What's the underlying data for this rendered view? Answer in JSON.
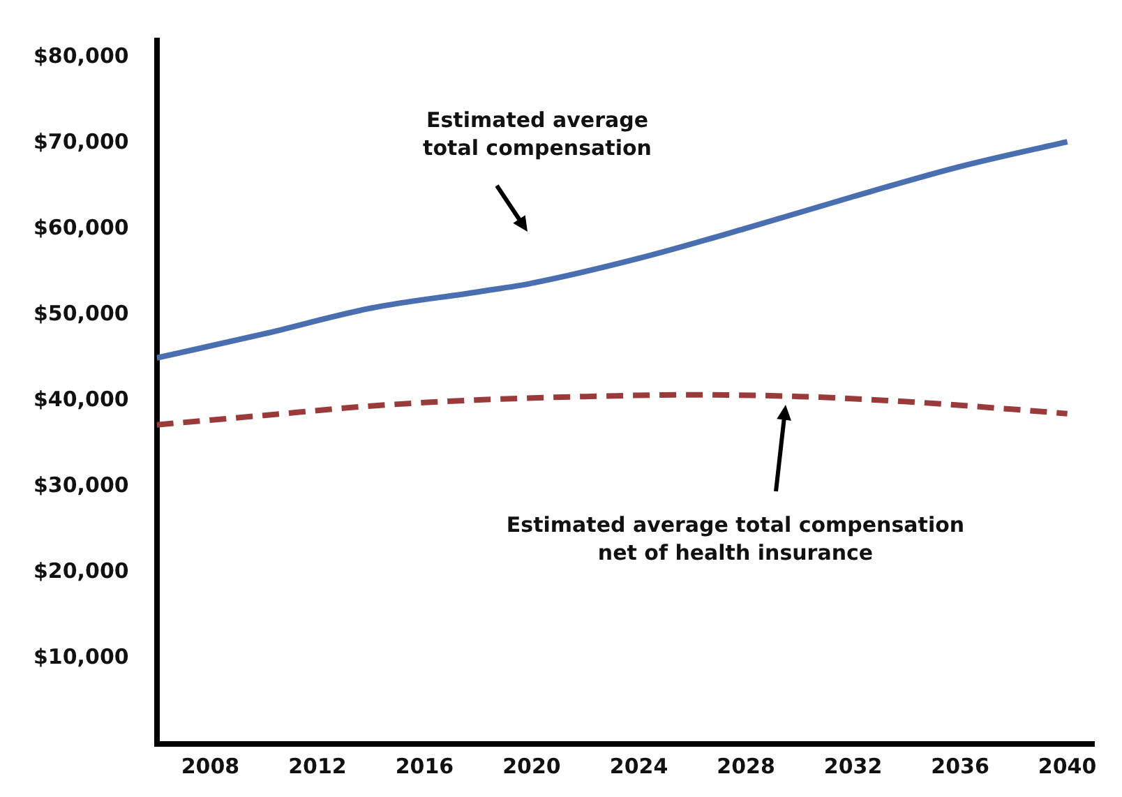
{
  "chart_data": {
    "type": "line",
    "xlim": [
      2006,
      2041
    ],
    "xticks": [
      2008,
      2012,
      2016,
      2020,
      2024,
      2028,
      2032,
      2036,
      2040
    ],
    "ylim": [
      0,
      82000
    ],
    "yticks": [
      {
        "value": 10000,
        "label": "$10,000"
      },
      {
        "value": 20000,
        "label": "$20,000"
      },
      {
        "value": 30000,
        "label": "$30,000"
      },
      {
        "value": 40000,
        "label": "$40,000"
      },
      {
        "value": 50000,
        "label": "$50,000"
      },
      {
        "value": 60000,
        "label": "$60,000"
      },
      {
        "value": 70000,
        "label": "$70,000"
      },
      {
        "value": 80000,
        "label": "$80,000"
      }
    ],
    "grid": false,
    "legend": false,
    "marker": "none",
    "series": [
      {
        "color": "#4a6fb0",
        "line_style": "solid",
        "x": [
          2006,
          2010,
          2014,
          2018,
          2020,
          2024,
          2028,
          2032,
          2036,
          2040
        ],
        "values": [
          45000,
          47800,
          50800,
          52700,
          53700,
          56600,
          60100,
          63800,
          67300,
          70200
        ]
      },
      {
        "color": "#9b3a3a",
        "line_style": "dashed",
        "x": [
          2006,
          2010,
          2014,
          2018,
          2022,
          2026,
          2030,
          2034,
          2038,
          2040
        ],
        "values": [
          37200,
          38300,
          39400,
          40100,
          40500,
          40700,
          40500,
          39900,
          39000,
          38500
        ]
      }
    ],
    "annotations": [
      "Estimated average\ntotal compensation",
      "Estimated average total compensation\nnet of health insurance"
    ]
  }
}
